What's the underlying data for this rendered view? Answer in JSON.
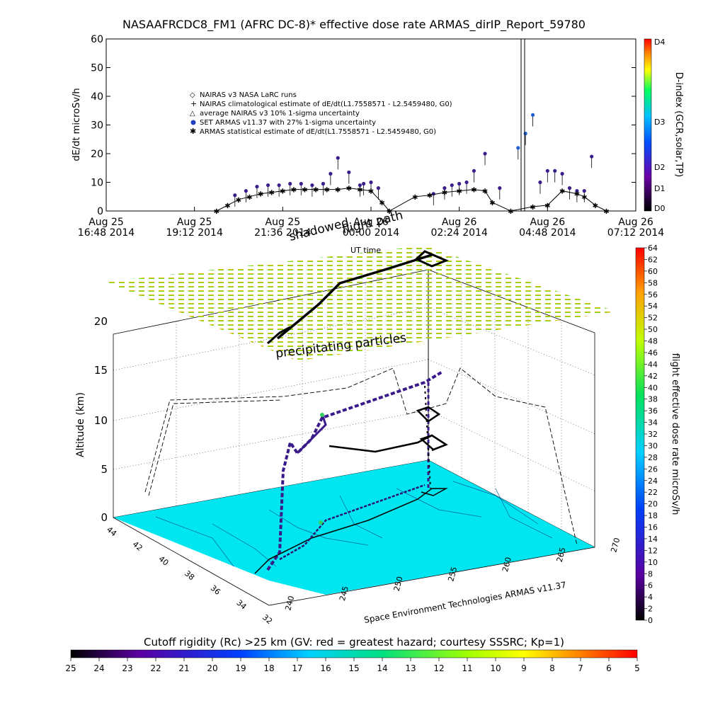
{
  "chart_data": [
    {
      "type": "scatter",
      "title": "NASAAFRCDC8_FM1 (AFRC DC-8)* effective dose rate ARMAS_dirIP_Report_59780",
      "ylabel": "dE/dt microSv/h",
      "ylim": [
        0,
        60
      ],
      "yticks": [
        "0",
        "10",
        "20",
        "30",
        "40",
        "50",
        "60"
      ],
      "xticks": [
        {
          "top": "Aug 25",
          "bottom": "16:48 2014"
        },
        {
          "top": "Aug 25",
          "bottom": "19:12 2014"
        },
        {
          "top": "Aug 25",
          "bottom": "21:36 2014"
        },
        {
          "top": "Aug 26",
          "bottom": "00:00 2014"
        },
        {
          "top": "Aug 26",
          "bottom": "02:24 2014"
        },
        {
          "top": "Aug 26",
          "bottom": "04:48 2014"
        },
        {
          "top": "Aug 26",
          "bottom": "07:12 2014"
        }
      ],
      "xlim_hours": [
        0,
        14.4
      ],
      "legend": [
        "NAIRAS v3 NASA LaRC runs",
        "NAIRAS climatological estimate of dE/dt(L1.7558571 - L2.5459480, G0)",
        "average NAIRAS v3 10% 1-sigma uncertainty",
        "SET ARMAS v11.37 with 27% 1-sigma uncertainty",
        "ARMAS statistical estimate of dE/dt(L1.7558571 - L2.5459480, G0)"
      ],
      "legend_position": "top-left",
      "right_axis": {
        "label": "D-index (GCR,solar,TP)",
        "ticks": [
          "D0",
          "D1",
          "D2",
          "D3",
          "D4"
        ],
        "colors": [
          "#000000",
          "#6a00a8",
          "#0050ff",
          "#00c0ff",
          "#00ff60",
          "#ffff00",
          "#ff8000",
          "#ff0000"
        ]
      },
      "series": [
        {
          "name": "SET ARMAS v11.37 with 27% 1-sigma uncertainty",
          "color": "#3a1f8c",
          "x_hours": [
            3.5,
            3.8,
            4.1,
            4.4,
            4.7,
            5.0,
            5.3,
            5.6,
            5.9,
            6.1,
            6.3,
            6.6,
            6.9,
            7.0,
            7.2,
            7.4,
            8.9,
            9.2,
            9.4,
            9.6,
            9.8,
            10.0,
            10.3,
            10.7,
            11.2,
            11.4,
            11.6,
            11.8,
            12.0,
            12.2,
            12.4,
            12.6,
            12.8,
            13.0,
            13.2
          ],
          "y": [
            5.5,
            7,
            8.5,
            9,
            9,
            9.5,
            9.5,
            9,
            9.5,
            13,
            18.5,
            13.5,
            9,
            9.5,
            10,
            8,
            6,
            8,
            9,
            9.5,
            10,
            14,
            20,
            8,
            22,
            27,
            33.5,
            10,
            14,
            14,
            13,
            8,
            7,
            7,
            19
          ]
        },
        {
          "name": "ARMAS statistical estimate of dE/dt(L1.7558571 - L2.5459480, G0)",
          "color": "#000000",
          "x_hours": [
            3.0,
            3.3,
            3.6,
            3.9,
            4.2,
            4.5,
            4.8,
            5.1,
            5.4,
            5.7,
            6.0,
            6.3,
            6.6,
            6.9,
            7.2,
            7.5,
            7.7,
            8.4,
            8.8,
            9.2,
            9.6,
            10.0,
            10.3,
            10.5,
            11.0,
            11.6,
            12.0,
            12.4,
            12.8,
            13.0,
            13.3,
            13.6
          ],
          "y": [
            0,
            2,
            4,
            5,
            6,
            6.5,
            7,
            7.5,
            7.5,
            7.5,
            7.5,
            7.5,
            8,
            7.5,
            7,
            3,
            0,
            5,
            5.5,
            6.5,
            7,
            7.5,
            7,
            3,
            0,
            1.5,
            2,
            7,
            6,
            5,
            2,
            0
          ]
        }
      ]
    },
    {
      "type": "scatter",
      "xlabel": "Space Environment Technologies ARMAS v11.37",
      "zlabel": "Altitude (km)",
      "zticks": [
        "0",
        "5",
        "10",
        "15",
        "20"
      ],
      "lat_ticks": [
        "44",
        "42",
        "40",
        "38",
        "36",
        "34",
        "32"
      ],
      "lon_ticks": [
        "240",
        "245",
        "250",
        "255",
        "260",
        "265",
        "270"
      ],
      "annotations": [
        "flight path",
        "shadowed",
        "UT time",
        "precipitating particles"
      ],
      "right_colorbar": {
        "label": "flight effective dose rate microSv/h",
        "ticks": [
          "0",
          "2",
          "4",
          "6",
          "8",
          "10",
          "12",
          "14",
          "16",
          "18",
          "20",
          "22",
          "24",
          "26",
          "28",
          "30",
          "32",
          "34",
          "36",
          "38",
          "40",
          "42",
          "44",
          "46",
          "48",
          "50",
          "52",
          "54",
          "56",
          "58",
          "60",
          "62",
          "64"
        ]
      },
      "bottom_colorbar": {
        "label": "Cutoff rigidity (Rc) >25 km (GV: red = greatest hazard; courtesy SSSRC; Kp=1)",
        "ticks": [
          "25",
          "24",
          "23",
          "22",
          "21",
          "20",
          "19",
          "18",
          "17",
          "16",
          "15",
          "14",
          "13",
          "12",
          "11",
          "10",
          "9",
          "8",
          "7",
          "6",
          "5"
        ]
      },
      "ground_color": "#00e6f0"
    }
  ]
}
